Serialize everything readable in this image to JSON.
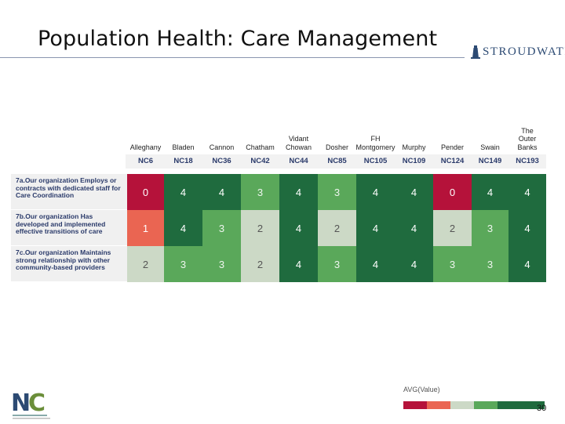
{
  "slide": {
    "title": "Population Health:  Care Management",
    "page_number": "30"
  },
  "brand": {
    "name": "STROUDWATER",
    "color": "#2c4a73"
  },
  "footer_logo": {
    "icon": "nc-state-logo"
  },
  "table": {
    "columns": [
      {
        "name": "Alleghany",
        "code": "NC6"
      },
      {
        "name": "Bladen",
        "code": "NC18"
      },
      {
        "name": "Cannon",
        "code": "NC36"
      },
      {
        "name": "Chatham",
        "code": "NC42"
      },
      {
        "name": "Vidant\nChowan",
        "code": "NC44"
      },
      {
        "name": "Dosher",
        "code": "NC85"
      },
      {
        "name": "FH\nMontgomery",
        "code": "NC105"
      },
      {
        "name": "Murphy",
        "code": "NC109"
      },
      {
        "name": "Pender",
        "code": "NC124"
      },
      {
        "name": "Swain",
        "code": "NC149"
      },
      {
        "name": "The\nOuter\nBanks",
        "code": "NC193"
      }
    ],
    "rows": [
      {
        "label": "7a.Our organization Employs or contracts with dedicated staff for Care Coordination",
        "values": [
          0,
          4,
          4,
          3,
          4,
          3,
          4,
          4,
          0,
          4,
          4
        ]
      },
      {
        "label": "7b.Our organization Has developed and implemented effective transitions of care",
        "values": [
          1,
          4,
          3,
          2,
          4,
          2,
          4,
          4,
          2,
          3,
          4
        ]
      },
      {
        "label": "7c.Our organization Maintains strong relationship with other community-based providers",
        "values": [
          2,
          3,
          3,
          2,
          4,
          3,
          4,
          4,
          3,
          3,
          4
        ]
      }
    ]
  },
  "color_scale": {
    "0": "#b5123a",
    "1": "#ea6552",
    "2": "#ccd9c6",
    "3": "#5aa85a",
    "4": "#1f6b3e"
  },
  "legend": {
    "title": "AVG(Value)"
  }
}
